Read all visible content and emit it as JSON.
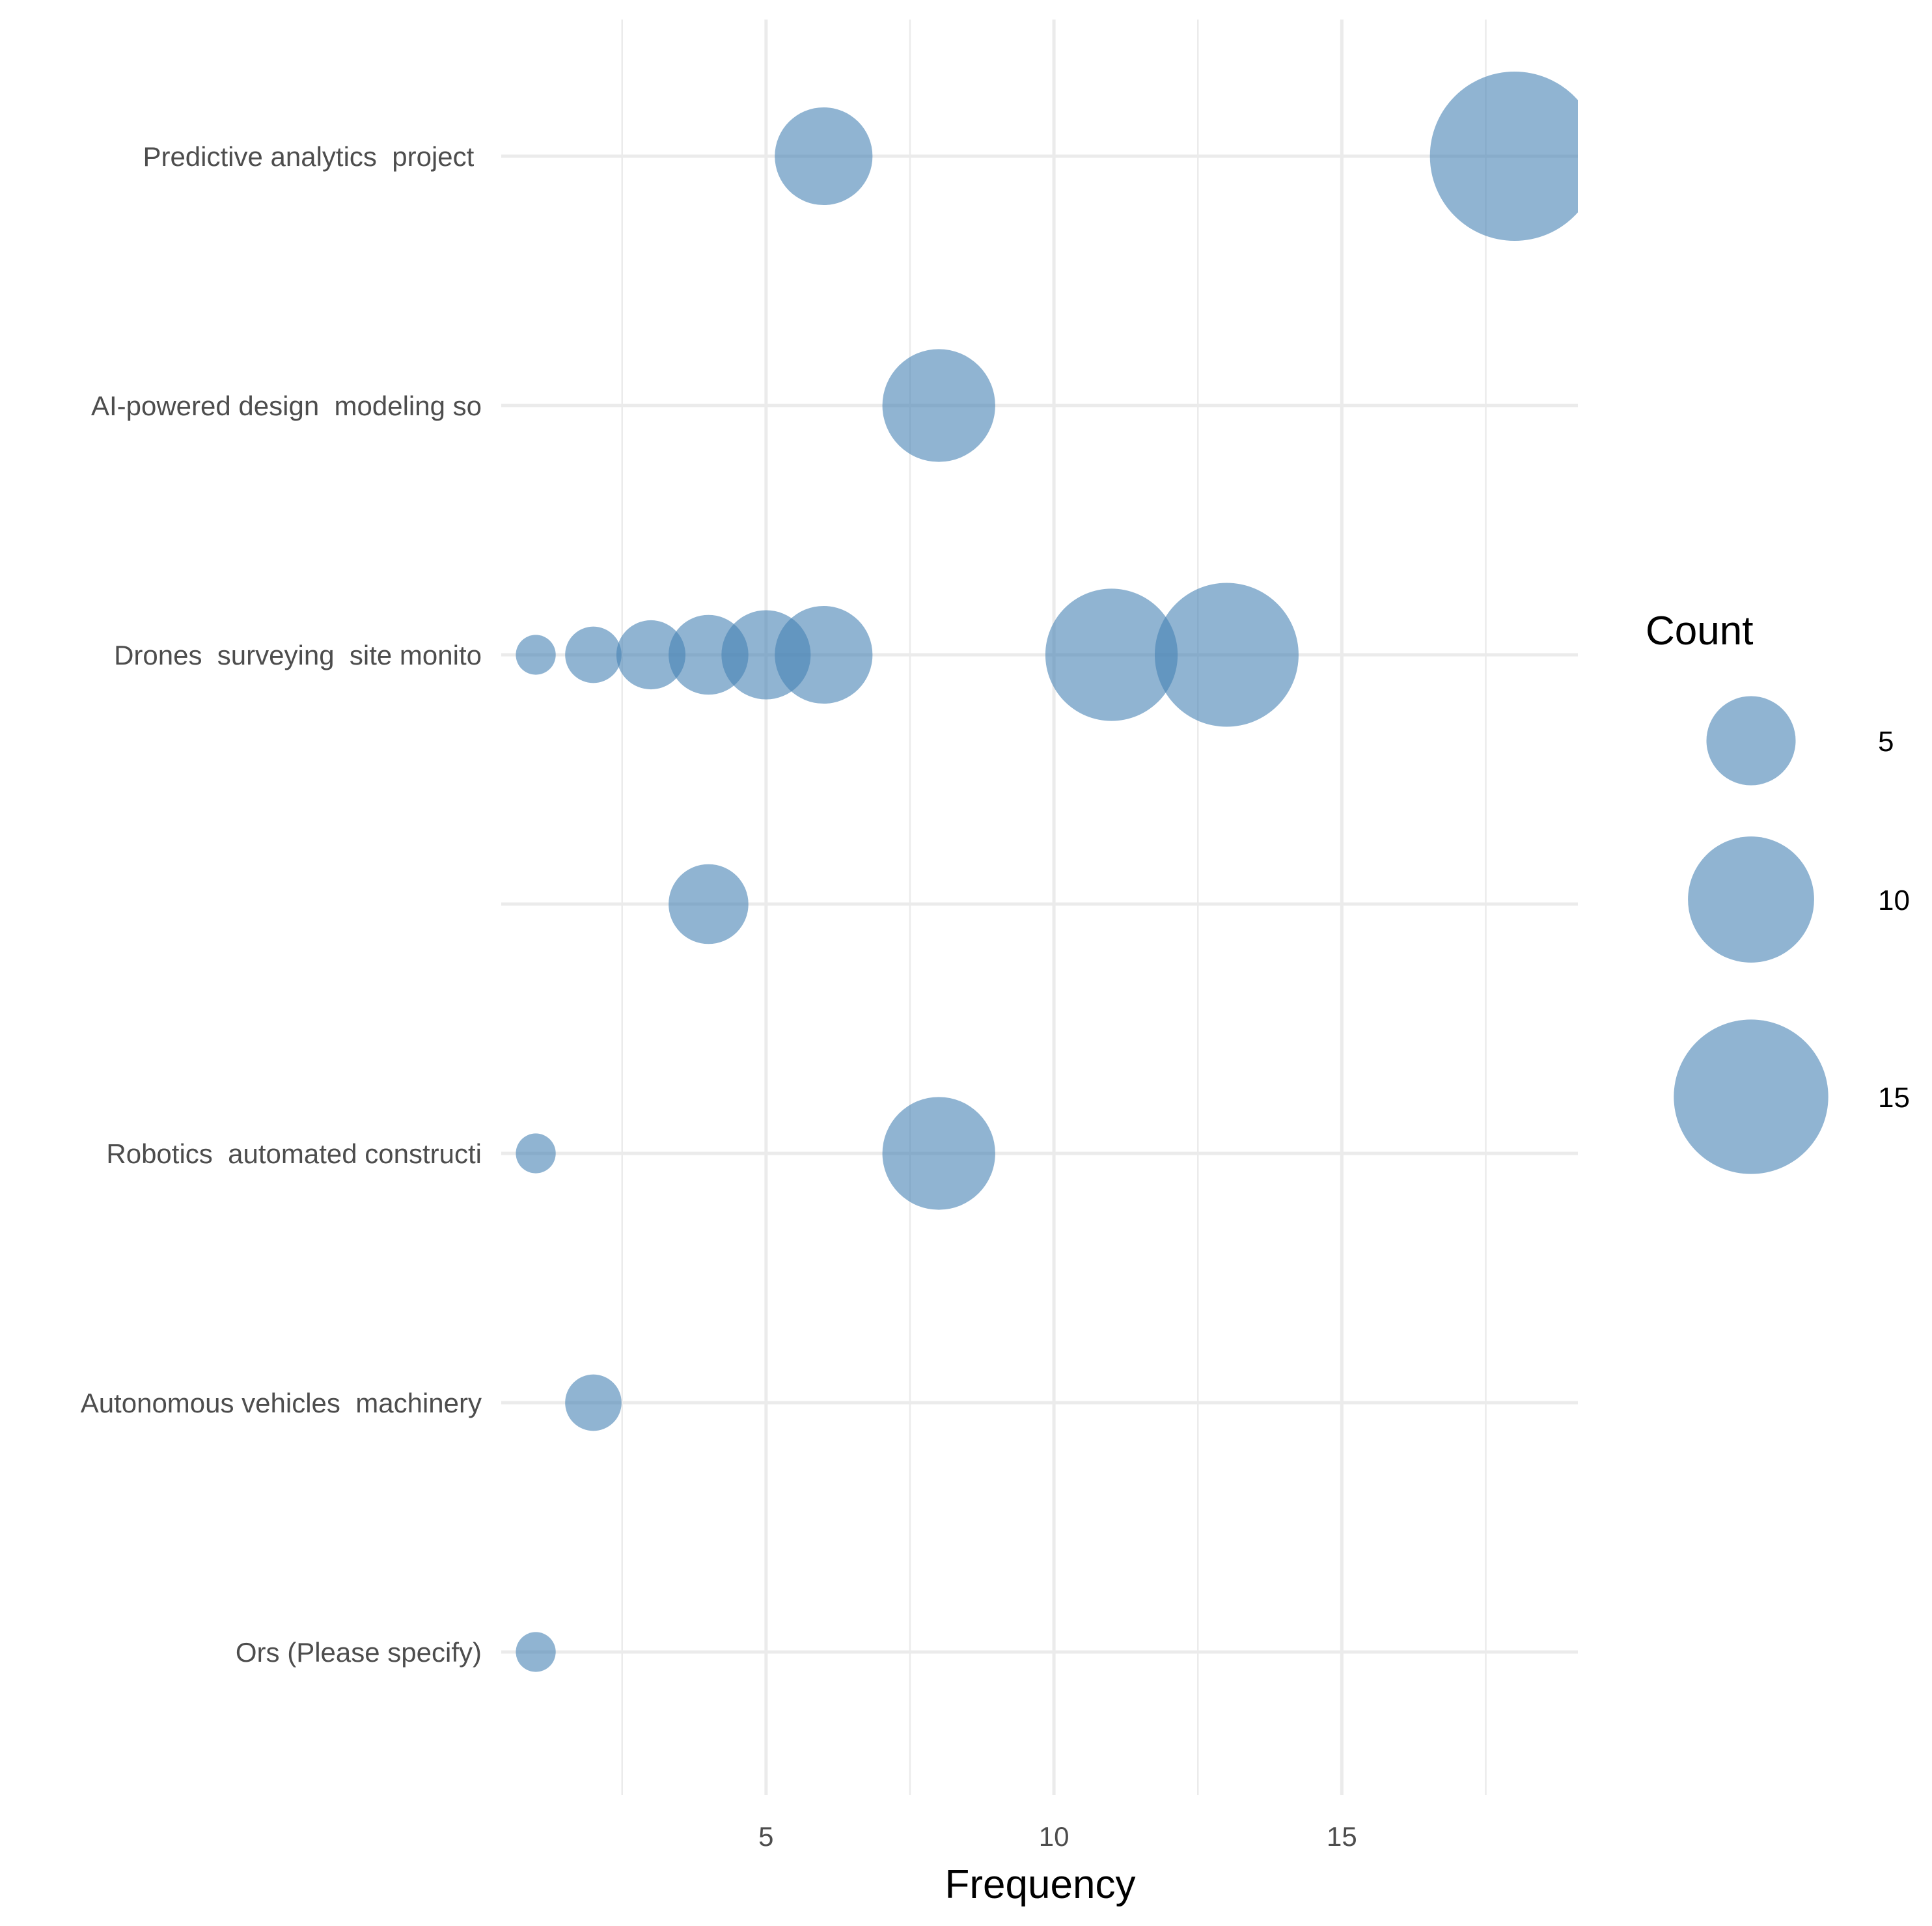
{
  "chart_data": {
    "type": "scatter",
    "subtype": "bubble",
    "title": "",
    "xlabel": "Frequency",
    "ylabel": "",
    "xlim": [
      0.4,
      19.1
    ],
    "x_ticks": [
      5,
      10,
      15
    ],
    "x_minor_ticks": [
      2.5,
      7.5,
      12.5,
      17.5
    ],
    "categories": [
      "Predictive analytics  project ",
      "AI-powered design  modeling so",
      "Drones  surveying  site monito",
      "",
      "Robotics  automated constructi",
      "Autonomous vehicles  machinery",
      "Ors (Please specify)"
    ],
    "points": [
      {
        "category": "Predictive analytics  project ",
        "x": 6,
        "count": 6
      },
      {
        "category": "Predictive analytics  project ",
        "x": 18,
        "count": 18
      },
      {
        "category": "AI-powered design  modeling so",
        "x": 8,
        "count": 8
      },
      {
        "category": "Drones  surveying  site monito",
        "x": 1,
        "count": 1
      },
      {
        "category": "Drones  surveying  site monito",
        "x": 2,
        "count": 2
      },
      {
        "category": "Drones  surveying  site monito",
        "x": 3,
        "count": 3
      },
      {
        "category": "Drones  surveying  site monito",
        "x": 4,
        "count": 4
      },
      {
        "category": "Drones  surveying  site monito",
        "x": 5,
        "count": 5
      },
      {
        "category": "Drones  surveying  site monito",
        "x": 6,
        "count": 6
      },
      {
        "category": "Drones  surveying  site monito",
        "x": 11,
        "count": 11
      },
      {
        "category": "Drones  surveying  site monito",
        "x": 13,
        "count": 13
      },
      {
        "category": "",
        "x": 4,
        "count": 4
      },
      {
        "category": "Robotics  automated constructi",
        "x": 1,
        "count": 1
      },
      {
        "category": "Robotics  automated constructi",
        "x": 8,
        "count": 8
      },
      {
        "category": "Autonomous vehicles  machinery",
        "x": 2,
        "count": 2
      },
      {
        "category": "Ors (Please specify)",
        "x": 1,
        "count": 1
      }
    ],
    "size_legend": {
      "title": "Count",
      "values": [
        5,
        10,
        15
      ],
      "position": "right"
    },
    "colors": {
      "fill": "#4682b4",
      "fill_opacity": 0.6,
      "grid": "#ebebeb",
      "tick_text": "#4d4d4d"
    }
  }
}
